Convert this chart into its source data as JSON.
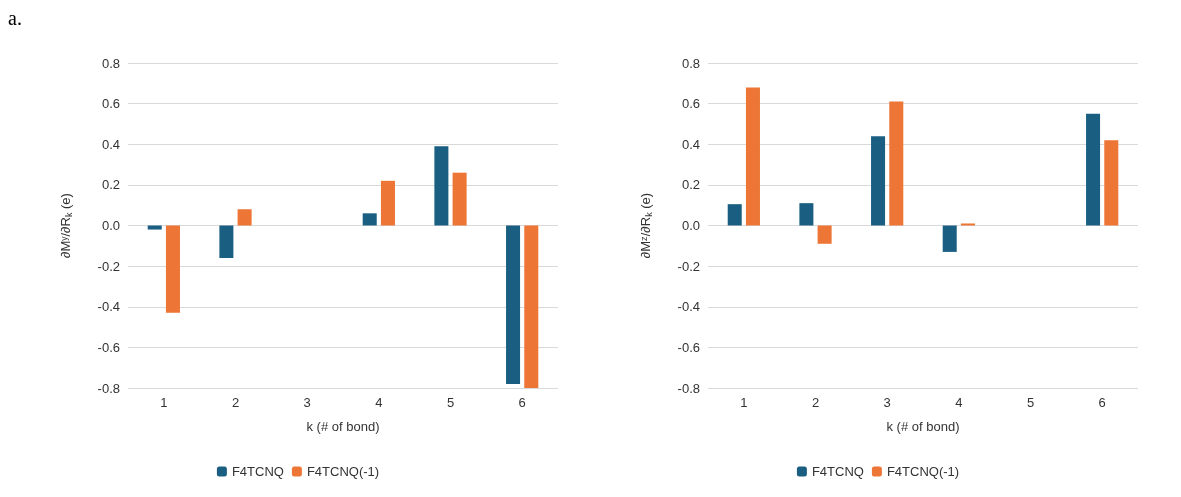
{
  "chart_data": [
    {
      "type": "bar",
      "annotations": [
        "a."
      ],
      "xlabel": "k (# of bond)",
      "ylabel": "∂Mʸ/∂R$_{k}$ (e)",
      "categories": [
        "1",
        "2",
        "3",
        "4",
        "5",
        "6"
      ],
      "series": [
        {
          "name": "F4TCNQ",
          "color": "#1a5f82",
          "values": [
            -0.02,
            -0.16,
            null,
            0.06,
            0.39,
            -0.78
          ]
        },
        {
          "name": "F4TCNQ(-1)",
          "color": "#ed7535",
          "values": [
            -0.43,
            0.08,
            null,
            0.22,
            0.26,
            -0.8
          ]
        }
      ],
      "ylim": [
        -0.8,
        0.8
      ],
      "yticks": [
        {
          "value": -0.8,
          "label": "-0.8"
        },
        {
          "value": -0.6,
          "label": "-0.6"
        },
        {
          "value": -0.4,
          "label": "-0.4"
        },
        {
          "value": -0.2,
          "label": "-0.2"
        },
        {
          "value": 0,
          "label": "0.0"
        },
        {
          "value": 0.2,
          "label": "0.2"
        },
        {
          "value": 0.4,
          "label": "0.4"
        },
        {
          "value": 0.6,
          "label": "0.6"
        },
        {
          "value": 0.8,
          "label": "0.8"
        }
      ],
      "grid": "y",
      "legend": "bottom"
    },
    {
      "type": "bar",
      "xlabel": "k (# of bond)",
      "ylabel": "∂Mᶻ/∂R$_{k}$ (e)",
      "categories": [
        "1",
        "2",
        "3",
        "4",
        "5",
        "6"
      ],
      "series": [
        {
          "name": "F4TCNQ",
          "color": "#1a5f82",
          "values": [
            0.105,
            0.11,
            0.44,
            -0.13,
            null,
            0.55
          ]
        },
        {
          "name": "F4TCNQ(-1)",
          "color": "#ed7535",
          "values": [
            0.68,
            -0.09,
            0.61,
            0.01,
            null,
            0.42
          ]
        }
      ],
      "ylim": [
        -0.8,
        0.8
      ],
      "yticks": [
        {
          "value": -0.8,
          "label": "-0.8"
        },
        {
          "value": -0.6,
          "label": "-0.6"
        },
        {
          "value": -0.4,
          "label": "-0.4"
        },
        {
          "value": -0.2,
          "label": "-0.2"
        },
        {
          "value": 0,
          "label": "0.0"
        },
        {
          "value": 0.2,
          "label": "0.2"
        },
        {
          "value": 0.4,
          "label": "0.4"
        },
        {
          "value": 0.6,
          "label": "0.6"
        },
        {
          "value": 0.8,
          "label": "0.8"
        }
      ],
      "grid": "y",
      "legend": "bottom"
    }
  ]
}
